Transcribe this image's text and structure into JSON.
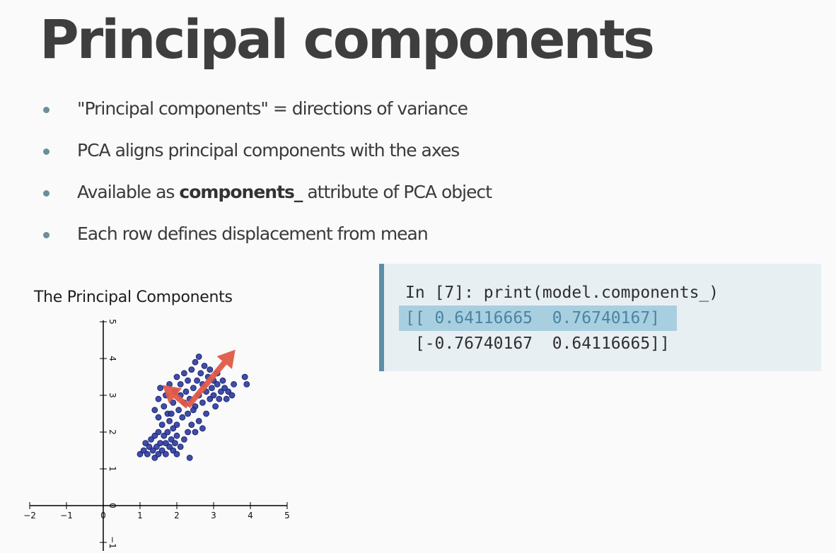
{
  "slide": {
    "title": "Principal components",
    "bullets": [
      {
        "text": "\"Principal components\" = directions of variance"
      },
      {
        "text": "PCA aligns principal components with the axes"
      },
      {
        "prefix": "Available as ",
        "bold": "components_",
        "suffix": " attribute of PCA object"
      },
      {
        "text": "Each row defines displacement from mean"
      }
    ]
  },
  "code": {
    "prompt_line": "In [7]: print(model.components_)",
    "output_line1": "[[ 0.64116665  0.76740167]",
    "output_line2": " [-0.76740167  0.64116665]]",
    "highlight_color": "#a8cfe0",
    "border_color": "#5b8fa8"
  },
  "chart_data": {
    "type": "scatter",
    "title": "The Principal Components",
    "xlim": [
      -2,
      5
    ],
    "ylim": [
      -1,
      5
    ],
    "xticks": [
      -2,
      -1,
      0,
      1,
      2,
      3,
      4,
      5
    ],
    "yticks": [
      -1,
      0,
      1,
      2,
      3,
      4,
      5
    ],
    "xtick_labels": [
      "−2",
      "−1",
      "0",
      "1",
      "2",
      "3",
      "4",
      "5"
    ],
    "ytick_labels": [
      "−1",
      "0",
      "1",
      "2",
      "3",
      "4",
      "5"
    ],
    "grid": false,
    "point_color": "#2a3a9c",
    "arrow_color": "#e05a47",
    "mean": [
      2.3,
      2.7
    ],
    "arrows": [
      {
        "dx": 1.29,
        "dy": 1.54
      },
      {
        "dx": -0.69,
        "dy": 0.58
      }
    ],
    "points": [
      [
        1.0,
        1.4
      ],
      [
        1.1,
        1.5
      ],
      [
        1.15,
        1.7
      ],
      [
        1.2,
        1.4
      ],
      [
        1.25,
        1.6
      ],
      [
        1.3,
        1.8
      ],
      [
        1.35,
        1.5
      ],
      [
        1.4,
        1.3
      ],
      [
        1.4,
        1.9
      ],
      [
        1.45,
        1.6
      ],
      [
        1.5,
        1.4
      ],
      [
        1.5,
        2.0
      ],
      [
        1.55,
        1.7
      ],
      [
        1.6,
        1.5
      ],
      [
        1.6,
        2.2
      ],
      [
        1.65,
        1.9
      ],
      [
        1.7,
        1.4
      ],
      [
        1.7,
        1.7
      ],
      [
        1.75,
        2.0
      ],
      [
        1.8,
        1.6
      ],
      [
        1.8,
        2.3
      ],
      [
        1.85,
        1.8
      ],
      [
        1.9,
        1.5
      ],
      [
        1.9,
        2.1
      ],
      [
        1.95,
        1.7
      ],
      [
        2.0,
        1.9
      ],
      [
        2.0,
        1.4
      ],
      [
        1.5,
        2.4
      ],
      [
        1.4,
        2.6
      ],
      [
        1.5,
        2.9
      ],
      [
        1.55,
        3.2
      ],
      [
        1.65,
        2.7
      ],
      [
        1.7,
        3.0
      ],
      [
        1.75,
        2.5
      ],
      [
        1.8,
        3.3
      ],
      [
        1.9,
        2.8
      ],
      [
        1.95,
        3.1
      ],
      [
        2.0,
        3.5
      ],
      [
        2.05,
        2.6
      ],
      [
        2.1,
        3.0
      ],
      [
        2.1,
        3.3
      ],
      [
        2.15,
        2.4
      ],
      [
        2.2,
        2.8
      ],
      [
        2.2,
        3.6
      ],
      [
        2.25,
        3.1
      ],
      [
        2.3,
        2.5
      ],
      [
        2.3,
        3.4
      ],
      [
        2.35,
        2.9
      ],
      [
        2.4,
        3.7
      ],
      [
        2.45,
        3.2
      ],
      [
        2.5,
        2.7
      ],
      [
        2.5,
        3.9
      ],
      [
        2.55,
        3.4
      ],
      [
        2.6,
        3.0
      ],
      [
        2.6,
        4.05
      ],
      [
        2.65,
        3.6
      ],
      [
        2.7,
        2.8
      ],
      [
        2.7,
        3.3
      ],
      [
        2.75,
        3.8
      ],
      [
        2.8,
        3.1
      ],
      [
        2.8,
        2.5
      ],
      [
        2.85,
        3.5
      ],
      [
        2.9,
        2.9
      ],
      [
        2.9,
        3.7
      ],
      [
        2.95,
        3.2
      ],
      [
        3.0,
        3.0
      ],
      [
        3.0,
        3.4
      ],
      [
        3.05,
        2.7
      ],
      [
        3.1,
        3.3
      ],
      [
        3.1,
        3.6
      ],
      [
        3.15,
        2.9
      ],
      [
        3.2,
        3.1
      ],
      [
        3.25,
        3.4
      ],
      [
        3.3,
        3.2
      ],
      [
        3.35,
        2.9
      ],
      [
        3.4,
        3.1
      ],
      [
        3.5,
        3.0
      ],
      [
        2.4,
        2.2
      ],
      [
        2.5,
        2.0
      ],
      [
        2.6,
        2.3
      ],
      [
        2.7,
        2.1
      ],
      [
        2.2,
        1.8
      ],
      [
        2.3,
        2.0
      ],
      [
        2.1,
        1.6
      ],
      [
        2.0,
        2.2
      ],
      [
        1.85,
        2.5
      ],
      [
        2.45,
        2.6
      ],
      [
        3.55,
        3.3
      ],
      [
        3.85,
        3.5
      ],
      [
        3.9,
        3.3
      ],
      [
        2.35,
        1.3
      ]
    ]
  }
}
